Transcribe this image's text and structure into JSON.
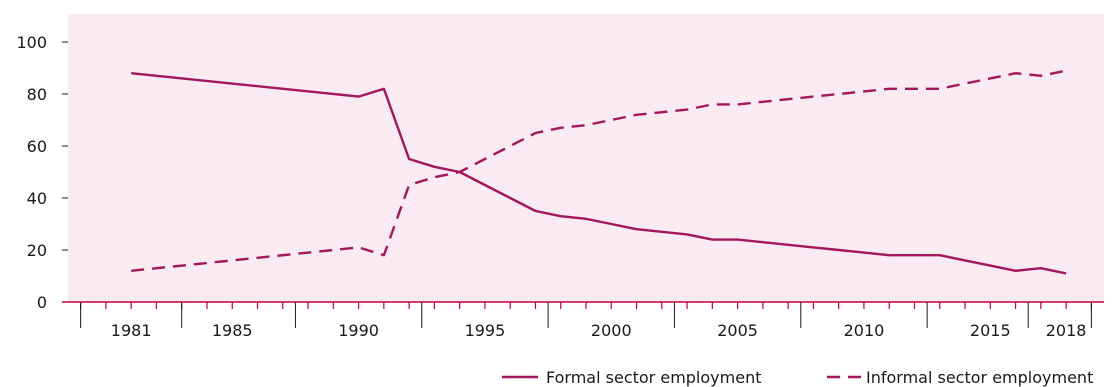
{
  "chart_data": {
    "type": "line",
    "title": "",
    "xlabel": "",
    "ylabel": "",
    "xlim": [
      1978.5,
      2019.5
    ],
    "ylim": [
      0,
      100
    ],
    "x_tick_labels": [
      "1981",
      "1985",
      "1990",
      "1995",
      "2000",
      "2005",
      "2010",
      "2015",
      "2018"
    ],
    "y_tick_labels": [
      "0",
      "20",
      "40",
      "60",
      "80",
      "100"
    ],
    "grid": false,
    "legend_position": "bottom-right",
    "colors": {
      "series": "#a3175c",
      "plot_background": "#f9ebf1",
      "zero_axis": "#c0003c",
      "zero_label": "#c0003c"
    },
    "series": [
      {
        "name": "Formal sector employment",
        "style": "solid",
        "x": [
          1981,
          1990,
          1991,
          1992,
          1993,
          1994,
          1995,
          1996,
          1997,
          1998,
          1999,
          2000,
          2001,
          2002,
          2003,
          2004,
          2005,
          2006,
          2007,
          2008,
          2009,
          2010,
          2011,
          2012,
          2013,
          2014,
          2015,
          2016,
          2017,
          2018
        ],
        "y": [
          88,
          79,
          82,
          55,
          52,
          50,
          45,
          40,
          35,
          33,
          32,
          30,
          28,
          27,
          26,
          24,
          24,
          23,
          22,
          21,
          20,
          19,
          18,
          18,
          18,
          16,
          14,
          12,
          13,
          11
        ]
      },
      {
        "name": "Informal sector employment",
        "style": "dashed",
        "x": [
          1981,
          1990,
          1991,
          1992,
          1993,
          1994,
          1995,
          1996,
          1997,
          1998,
          1999,
          2000,
          2001,
          2002,
          2003,
          2004,
          2005,
          2006,
          2007,
          2008,
          2009,
          2010,
          2011,
          2012,
          2013,
          2014,
          2015,
          2016,
          2017,
          2018
        ],
        "y": [
          12,
          21,
          18,
          45,
          48,
          50,
          55,
          60,
          65,
          67,
          68,
          70,
          72,
          73,
          74,
          76,
          76,
          77,
          78,
          79,
          80,
          81,
          82,
          82,
          82,
          84,
          86,
          88,
          87,
          89
        ]
      }
    ]
  }
}
